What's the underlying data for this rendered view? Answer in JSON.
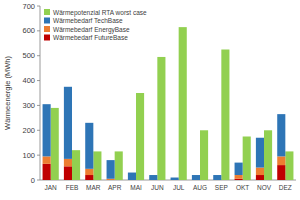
{
  "chart_data": {
    "type": "bar",
    "ylabel": "Wärmeenergie (MWh)",
    "categories": [
      "JAN",
      "FEB",
      "MAR",
      "APR",
      "MAI",
      "JUN",
      "JUL",
      "AUG",
      "SEP",
      "OKT",
      "NOV",
      "DEZ"
    ],
    "series": [
      {
        "name": "Wärmepotenzial RTA worst case",
        "color": "#92d050",
        "values": [
          290,
          120,
          115,
          115,
          350,
          495,
          615,
          200,
          525,
          175,
          200,
          115
        ]
      },
      {
        "name": "Wärmebedarf TechBase",
        "color": "#2e75b6",
        "values": [
          210,
          290,
          185,
          75,
          30,
          20,
          10,
          20,
          20,
          50,
          120,
          170
        ]
      },
      {
        "name": "Wärmebedarf EnergyBase",
        "color": "#ed7d31",
        "values": [
          30,
          30,
          25,
          5,
          0,
          0,
          0,
          0,
          0,
          15,
          30,
          35
        ]
      },
      {
        "name": "Wärmebedarf FutureBase",
        "color": "#c00000",
        "values": [
          65,
          55,
          20,
          0,
          0,
          0,
          0,
          0,
          0,
          5,
          20,
          60
        ]
      }
    ],
    "ylim": [
      0,
      700
    ],
    "yticks": [
      0,
      100,
      200,
      300,
      400,
      500,
      600,
      700
    ],
    "stacked": true,
    "grid": false,
    "legend": "upper left"
  }
}
